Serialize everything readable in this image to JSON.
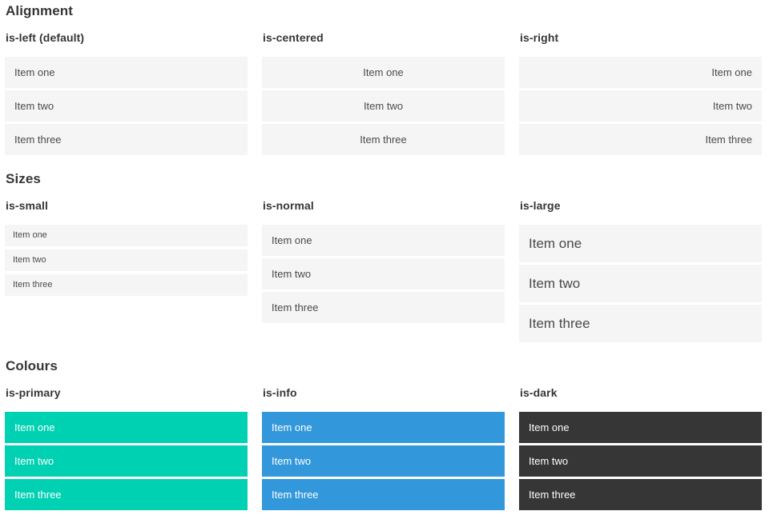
{
  "page": {
    "sections": [
      {
        "title": "Alignment",
        "groups": [
          {
            "heading": "is-left (default)",
            "variant": "is-left",
            "items": [
              "Item one",
              "Item two",
              "Item three"
            ]
          },
          {
            "heading": "is-centered",
            "variant": "is-centered",
            "items": [
              "Item one",
              "Item two",
              "Item three"
            ]
          },
          {
            "heading": "is-right",
            "variant": "is-right",
            "items": [
              "Item one",
              "Item two",
              "Item three"
            ]
          }
        ]
      },
      {
        "title": "Sizes",
        "groups": [
          {
            "heading": "is-small",
            "variant": "is-small",
            "items": [
              "Item one",
              "Item two",
              "Item three"
            ]
          },
          {
            "heading": "is-normal",
            "variant": "is-normal",
            "items": [
              "Item one",
              "Item two",
              "Item three"
            ]
          },
          {
            "heading": "is-large",
            "variant": "is-large",
            "items": [
              "Item one",
              "Item two",
              "Item three"
            ]
          }
        ]
      },
      {
        "title": "Colours",
        "groups": [
          {
            "heading": "is-primary",
            "variant": "is-primary",
            "items": [
              "Item one",
              "Item two",
              "Item three"
            ]
          },
          {
            "heading": "is-info",
            "variant": "is-info",
            "items": [
              "Item one",
              "Item two",
              "Item three"
            ]
          },
          {
            "heading": "is-dark",
            "variant": "is-dark",
            "items": [
              "Item one",
              "Item two",
              "Item three"
            ]
          }
        ]
      }
    ]
  },
  "colors": {
    "primary": "#00d1b2",
    "info": "#3298db",
    "dark": "#363636",
    "item-bg": "#f5f5f5",
    "item-text": "#4a4a4a",
    "heading": "#363636"
  }
}
